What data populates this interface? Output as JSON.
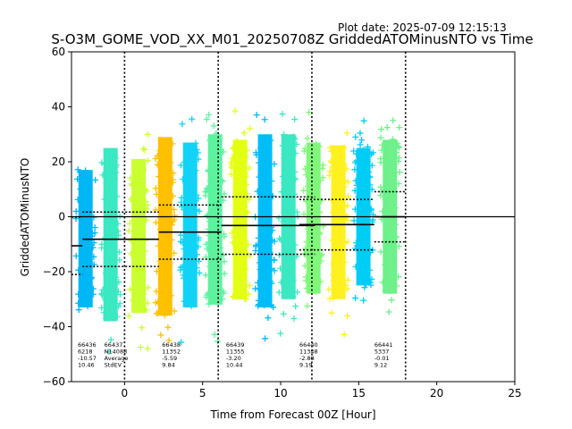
{
  "header": {
    "plot_date": "Plot date: 2025-07-09 12:15:13"
  },
  "chart_data": {
    "type": "scatter",
    "title": "S-O3M_GOME_VOD_XX_M01_20250708Z GriddedATOMinusNTO vs Time",
    "xlabel": "Time from Forecast 00Z [Hour]",
    "ylabel": "GriddedATOMinusNTO",
    "xlim": [
      -3.4,
      25
    ],
    "ylim": [
      -60,
      60
    ],
    "x_ticks": [
      0,
      5,
      10,
      15,
      20,
      25
    ],
    "y_ticks": [
      -60,
      -40,
      -20,
      0,
      20,
      40,
      60
    ],
    "x_tick_labels": [
      "0",
      "5",
      "10",
      "15",
      "20",
      "25"
    ],
    "y_tick_labels": [
      "−60",
      "−40",
      "−20",
      "0",
      "20",
      "40",
      "60"
    ],
    "grid": false,
    "marker": "+",
    "zero_line": 0,
    "analysis_boundaries": [
      0,
      6,
      12,
      18
    ],
    "orbit_bands": [
      {
        "x": -2.5,
        "top": 17,
        "bottom": -33,
        "color": "#00b7f5"
      },
      {
        "x": -0.9,
        "top": 25,
        "bottom": -38,
        "color": "#3ae8c2"
      },
      {
        "x": 0.9,
        "top": 21,
        "bottom": -35,
        "color": "#c9ff30"
      },
      {
        "x": 2.6,
        "top": 29,
        "bottom": -36,
        "color": "#ffc000"
      },
      {
        "x": 4.2,
        "top": 27,
        "bottom": -33,
        "color": "#12d3f5"
      },
      {
        "x": 5.8,
        "top": 30,
        "bottom": -32,
        "color": "#5cf29e"
      },
      {
        "x": 7.4,
        "top": 28,
        "bottom": -30,
        "color": "#e3ff14"
      },
      {
        "x": 9.0,
        "top": 30,
        "bottom": -33,
        "color": "#00bdf7"
      },
      {
        "x": 10.5,
        "top": 30,
        "bottom": -30,
        "color": "#3ae8c2"
      },
      {
        "x": 12.1,
        "top": 27,
        "bottom": -28,
        "color": "#80f77a"
      },
      {
        "x": 13.7,
        "top": 26,
        "bottom": -30,
        "color": "#fff020"
      },
      {
        "x": 15.3,
        "top": 25,
        "bottom": -25,
        "color": "#00cdf5"
      },
      {
        "x": 17.0,
        "top": 28,
        "bottom": -28,
        "color": "#6ef08a"
      }
    ],
    "window_stats": [
      {
        "x_range": [
          -3.4,
          -2.7
        ],
        "mean": -10.57,
        "std": 10.46,
        "orbit": "66436",
        "count": "6218",
        "average": "-10.57",
        "stdev": "10.46"
      },
      {
        "x_range": [
          -2.7,
          2.2
        ],
        "mean": -8.2,
        "std": 9.9,
        "orbit": "66437",
        "count": "14088",
        "average": "-8.20",
        "stdev": "9.90"
      },
      {
        "x_range": [
          2.2,
          6.2
        ],
        "mean": -5.59,
        "std": 9.84,
        "orbit": "66438",
        "count": "11352",
        "average": "-5.59",
        "stdev": "9.84"
      },
      {
        "x_range": [
          6.2,
          12.2
        ],
        "mean": -3.2,
        "std": 10.44,
        "orbit": "66439",
        "count": "11355",
        "average": "-3.20",
        "stdev": "10.44"
      },
      {
        "x_range": [
          11.2,
          16.0
        ],
        "mean": -2.88,
        "std": 9.19,
        "orbit": "66440",
        "count": "11348",
        "average": "-2.88",
        "stdev": "9.19"
      },
      {
        "x_range": [
          16.0,
          18.0
        ],
        "mean": -0.01,
        "std": 9.12,
        "orbit": "66441",
        "count": "5337",
        "average": "-0.01",
        "stdev": "9.12"
      }
    ],
    "stat_annotations": [
      {
        "x": -3.0,
        "lines": [
          "66436",
          "6218",
          "-10.57",
          "10.46"
        ]
      },
      {
        "x": -1.3,
        "lines": [
          "66437",
          "N14088",
          "Average",
          "StdEV"
        ]
      },
      {
        "x": 2.4,
        "lines": [
          "66438",
          "11352",
          "-5.59",
          "9.84"
        ]
      },
      {
        "x": 6.5,
        "lines": [
          "66439",
          "11355",
          "-3.20",
          "10.44"
        ]
      },
      {
        "x": 11.2,
        "lines": [
          "66440",
          "11348",
          "-2.88",
          "9.19"
        ]
      },
      {
        "x": 16.0,
        "lines": [
          "66441",
          "5337",
          "-0.01",
          "9.12"
        ]
      }
    ]
  }
}
